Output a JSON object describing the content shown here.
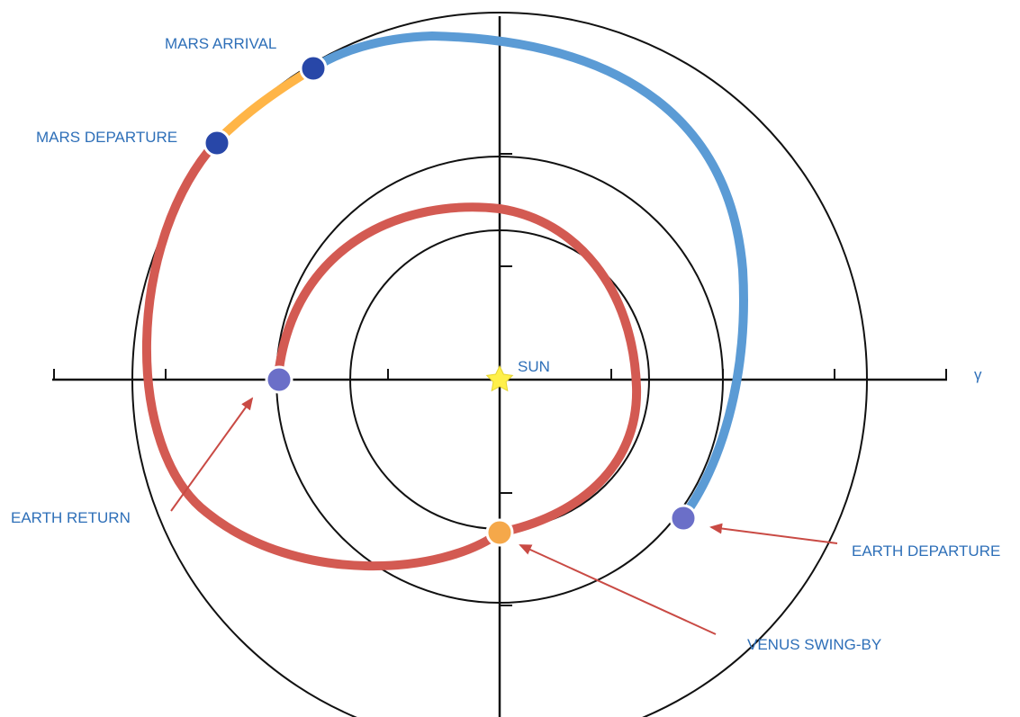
{
  "labels": {
    "mars_arrival": "MARS ARRIVAL",
    "mars_departure": "MARS DEPARTURE",
    "sun": "SUN",
    "gamma": "γ",
    "earth_return": "EARTH RETURN",
    "earth_departure": "EARTH  DEPARTURE",
    "venus_swing_by": "VENUS SWING-BY"
  },
  "colors": {
    "outbound_leg": "#5b9bd5",
    "mars_stay_leg": "#ffb547",
    "return_leg": "#d35a52",
    "planet_earth": "#6b6fc8",
    "planet_mars": "#2847a8",
    "planet_venus": "#f5a84a",
    "sun": "#fff04a",
    "orbit": "#111111",
    "arrow": "#c94a44",
    "label_text": "#2e6fb8"
  },
  "icons": {
    "sun": "star-icon",
    "planet": "circle-marker-icon"
  }
}
